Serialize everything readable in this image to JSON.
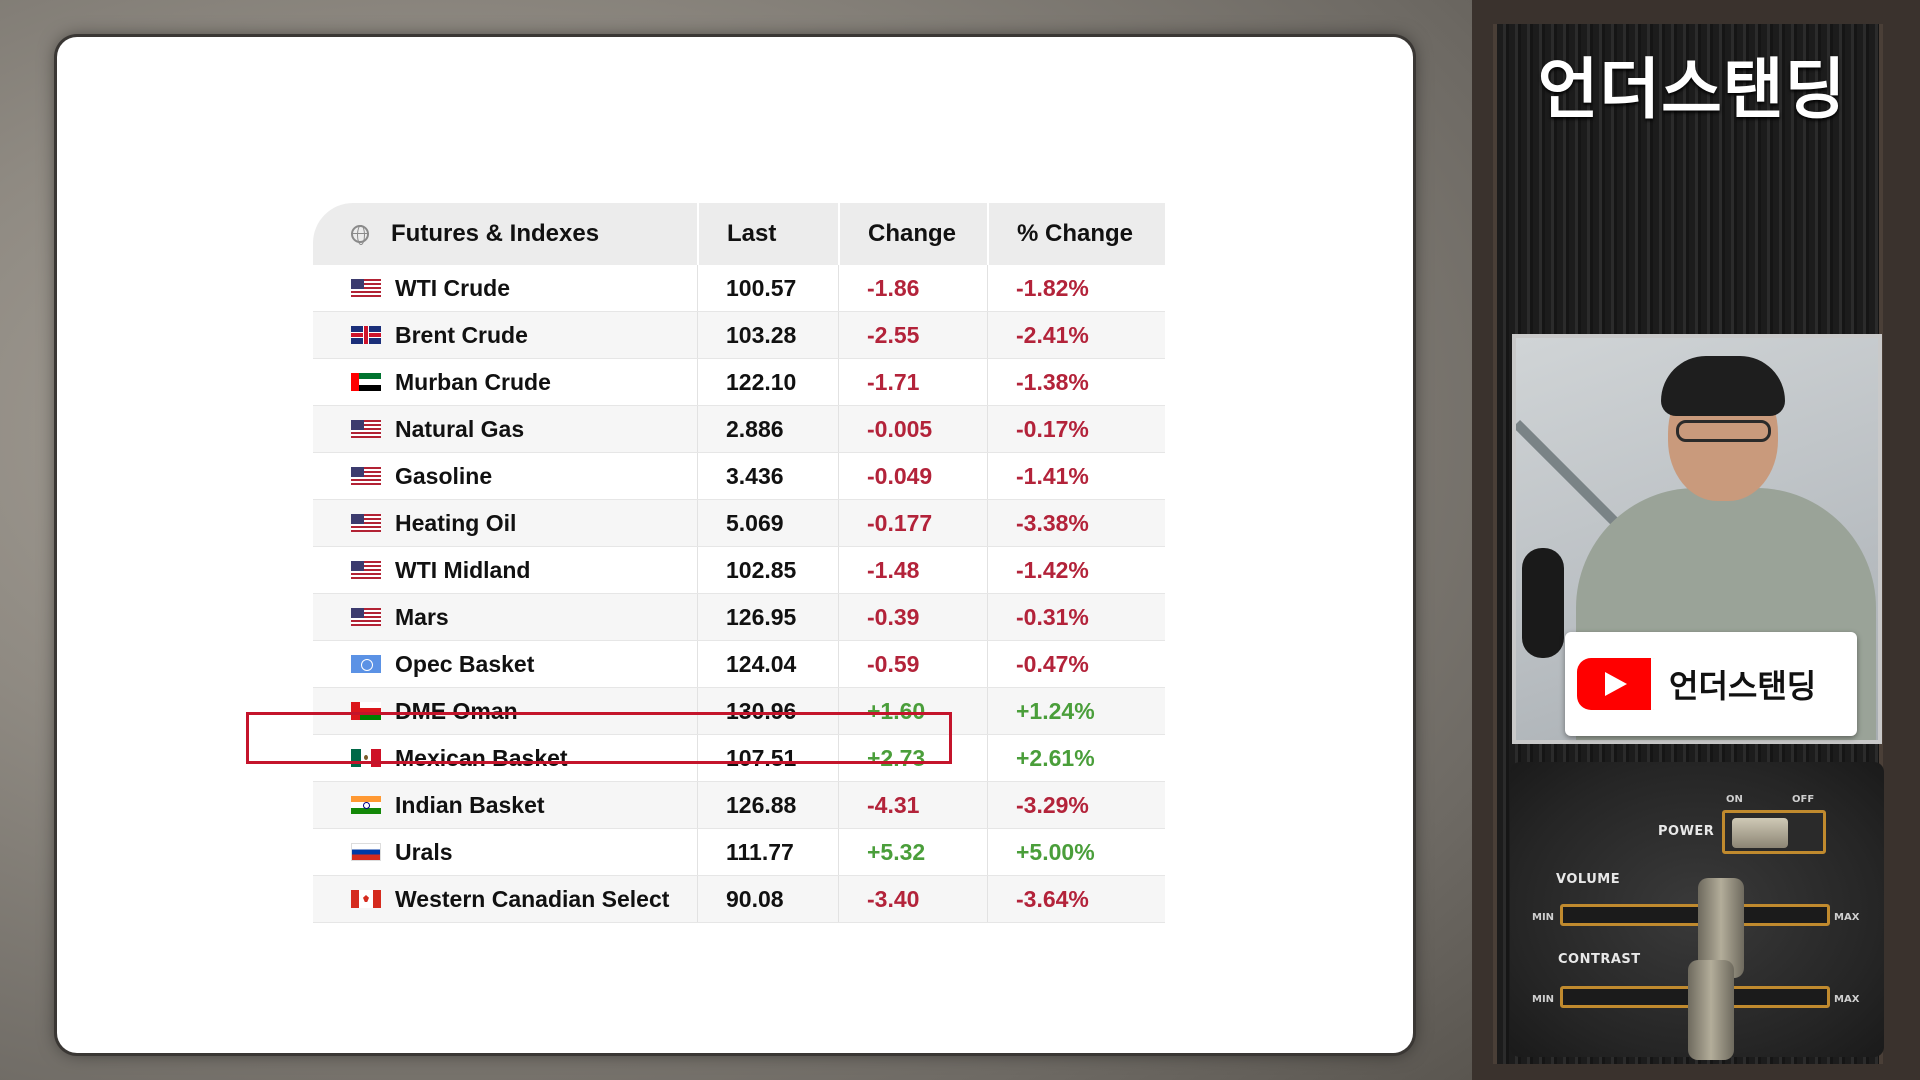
{
  "table": {
    "headers": {
      "name": "Futures & Indexes",
      "last": "Last",
      "change": "Change",
      "pct_change": "% Change"
    },
    "rows": [
      {
        "flag": "us",
        "name": "WTI Crude",
        "last": "100.57",
        "change": "-1.86",
        "pct": "-1.82%",
        "direction": "neg"
      },
      {
        "flag": "gb",
        "name": "Brent Crude",
        "last": "103.28",
        "change": "-2.55",
        "pct": "-2.41%",
        "direction": "neg"
      },
      {
        "flag": "ae",
        "name": "Murban Crude",
        "last": "122.10",
        "change": "-1.71",
        "pct": "-1.38%",
        "direction": "neg"
      },
      {
        "flag": "us",
        "name": "Natural Gas",
        "last": "2.886",
        "change": "-0.005",
        "pct": "-0.17%",
        "direction": "neg"
      },
      {
        "flag": "us",
        "name": "Gasoline",
        "last": "3.436",
        "change": "-0.049",
        "pct": "-1.41%",
        "direction": "neg"
      },
      {
        "flag": "us",
        "name": "Heating Oil",
        "last": "5.069",
        "change": "-0.177",
        "pct": "-3.38%",
        "direction": "neg"
      },
      {
        "flag": "us",
        "name": "WTI Midland",
        "last": "102.85",
        "change": "-1.48",
        "pct": "-1.42%",
        "direction": "neg"
      },
      {
        "flag": "us",
        "name": "Mars",
        "last": "126.95",
        "change": "-0.39",
        "pct": "-0.31%",
        "direction": "neg"
      },
      {
        "flag": "un",
        "name": "Opec Basket",
        "last": "124.04",
        "change": "-0.59",
        "pct": "-0.47%",
        "direction": "neg"
      },
      {
        "flag": "om",
        "name": "DME Oman",
        "last": "130.96",
        "change": "+1.60",
        "pct": "+1.24%",
        "direction": "pos"
      },
      {
        "flag": "mx",
        "name": "Mexican Basket",
        "last": "107.51",
        "change": "+2.73",
        "pct": "+2.61%",
        "direction": "pos"
      },
      {
        "flag": "in",
        "name": "Indian Basket",
        "last": "126.88",
        "change": "-4.31",
        "pct": "-3.29%",
        "direction": "neg"
      },
      {
        "flag": "ru",
        "name": "Urals",
        "last": "111.77",
        "change": "+5.32",
        "pct": "+5.00%",
        "direction": "pos"
      },
      {
        "flag": "ca",
        "name": "Western Canadian Select",
        "last": "90.08",
        "change": "-3.40",
        "pct": "-3.64%",
        "direction": "neg"
      }
    ],
    "highlighted_row": "Western Canadian Select"
  },
  "sidebar": {
    "channel_title": "언더스탠딩",
    "badge_text": "언더스탠딩",
    "controls": {
      "power": "POWER",
      "on": "ON",
      "off": "OFF",
      "volume": "VOLUME",
      "contrast": "CONTRAST",
      "min": "MIN",
      "max": "MAX"
    }
  },
  "colors": {
    "negative": "#b3233a",
    "positive": "#4a9e3a",
    "highlight_border": "#c4142b",
    "youtube_red": "#ff0000"
  }
}
